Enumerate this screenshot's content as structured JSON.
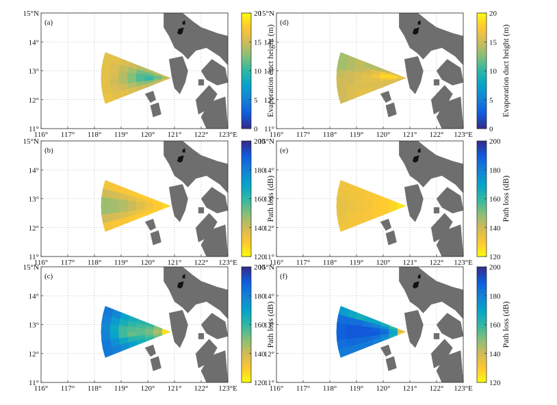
{
  "figure": {
    "axes": {
      "x_ticks": [
        "116°",
        "117°",
        "118°",
        "119°",
        "120°",
        "121°",
        "122°",
        "123°E"
      ],
      "y_ticks": [
        "11°",
        "12°",
        "13°",
        "14°",
        "15°N"
      ]
    }
  },
  "chart_data": [
    {
      "type": "heatmap",
      "panel": "(a)",
      "title": "",
      "xlabel": "",
      "ylabel": "",
      "xlim": [
        116,
        123
      ],
      "ylim": [
        11,
        15
      ],
      "colorbar": {
        "label": "Evaporation duct height (m)",
        "min": 0,
        "max": 20,
        "ticks": [
          "0",
          "5",
          "10",
          "15",
          "20"
        ],
        "colormap": "parula"
      },
      "sector": {
        "apex_lon": 120.85,
        "apex_lat": 12.75,
        "range_deg": 2.6,
        "bearing_min": 250,
        "bearing_max": 290
      },
      "values": [
        [
          15.5,
          14.5,
          14.0,
          14.0,
          15.0,
          15.5,
          16.0,
          16.0
        ],
        [
          14.5,
          13.0,
          12.0,
          12.0,
          13.5,
          14.5,
          15.5,
          16.0
        ],
        [
          13.5,
          11.5,
          10.5,
          11.0,
          12.5,
          14.0,
          15.5,
          16.0
        ],
        [
          14.0,
          12.0,
          10.0,
          11.0,
          12.5,
          14.0,
          15.0,
          16.0
        ],
        [
          15.0,
          13.5,
          12.5,
          13.0,
          14.0,
          15.0,
          15.5,
          16.0
        ],
        [
          15.5,
          15.0,
          14.5,
          15.0,
          15.5,
          16.0,
          16.0,
          16.5
        ]
      ]
    },
    {
      "type": "heatmap",
      "panel": "(b)",
      "xlim": [
        116,
        123
      ],
      "ylim": [
        11,
        15
      ],
      "colorbar": {
        "label": "Path loss (dB)",
        "min": 120,
        "max": 200,
        "ticks": [
          "120",
          "140",
          "160",
          "180",
          "200"
        ],
        "colormap": "parula_reversed"
      },
      "sector": {
        "apex_lon": 120.85,
        "apex_lat": 12.75,
        "range_deg": 2.6,
        "bearing_min": 250,
        "bearing_max": 290
      },
      "values": [
        [
          128,
          129,
          129,
          129,
          130,
          131,
          131,
          132
        ],
        [
          127,
          129,
          131,
          133,
          136,
          138,
          139,
          140
        ],
        [
          127,
          130,
          133,
          137,
          141,
          144,
          146,
          147
        ],
        [
          127,
          130,
          133,
          137,
          141,
          144,
          146,
          147
        ],
        [
          127,
          129,
          131,
          133,
          136,
          138,
          139,
          140
        ],
        [
          128,
          129,
          129,
          129,
          130,
          131,
          131,
          132
        ]
      ]
    },
    {
      "type": "heatmap",
      "panel": "(c)",
      "xlim": [
        116,
        123
      ],
      "ylim": [
        11,
        15
      ],
      "colorbar": {
        "label": "Path loss (dB)",
        "min": 120,
        "max": 200,
        "ticks": [
          "120",
          "140",
          "160",
          "180",
          "200"
        ],
        "colormap": "parula_reversed"
      },
      "sector": {
        "apex_lon": 120.85,
        "apex_lat": 12.75,
        "range_deg": 2.6,
        "bearing_min": 250,
        "bearing_max": 290
      },
      "values": [
        [
          125,
          150,
          160,
          162,
          165,
          170,
          178,
          182
        ],
        [
          125,
          148,
          155,
          158,
          160,
          165,
          172,
          180
        ],
        [
          125,
          145,
          152,
          155,
          156,
          158,
          168,
          178
        ],
        [
          125,
          145,
          152,
          155,
          153,
          158,
          170,
          180
        ],
        [
          125,
          148,
          155,
          160,
          162,
          168,
          176,
          182
        ],
        [
          125,
          152,
          160,
          165,
          170,
          176,
          180,
          182
        ]
      ]
    },
    {
      "type": "heatmap",
      "panel": "(d)",
      "xlim": [
        116,
        123
      ],
      "ylim": [
        11,
        15
      ],
      "colorbar": {
        "label": "Evaporation duct height (m)",
        "min": 0,
        "max": 20,
        "ticks": [
          "0",
          "5",
          "10",
          "15",
          "20"
        ],
        "colormap": "parula"
      },
      "sector": {
        "apex_lon": 120.85,
        "apex_lat": 12.75,
        "range_deg": 2.6,
        "bearing_min": 250,
        "bearing_max": 290
      },
      "values": [
        [
          16.0,
          15.0,
          14.5,
          14.0,
          14.0,
          14.5,
          14.0,
          13.5
        ],
        [
          17.0,
          18.0,
          17.5,
          16.0,
          15.0,
          14.5,
          14.0,
          13.5
        ],
        [
          17.0,
          18.5,
          18.5,
          17.0,
          16.0,
          15.5,
          15.0,
          14.5
        ],
        [
          16.5,
          17.5,
          17.0,
          16.0,
          16.0,
          15.5,
          15.0,
          15.0
        ],
        [
          15.5,
          15.5,
          15.5,
          15.5,
          15.5,
          15.5,
          15.5,
          15.0
        ],
        [
          15.5,
          15.5,
          15.5,
          15.5,
          16.0,
          16.0,
          15.5,
          15.0
        ]
      ]
    },
    {
      "type": "heatmap",
      "panel": "(e)",
      "xlim": [
        116,
        123
      ],
      "ylim": [
        11,
        15
      ],
      "colorbar": {
        "label": "Path loss (dB)",
        "min": 120,
        "max": 200,
        "ticks": [
          "120",
          "140",
          "160",
          "180",
          "200"
        ],
        "colormap": "parula_reversed"
      },
      "sector": {
        "apex_lon": 120.85,
        "apex_lat": 12.75,
        "range_deg": 2.6,
        "bearing_min": 250,
        "bearing_max": 290
      },
      "values": [
        [
          124,
          127,
          129,
          130,
          131,
          132,
          132,
          133
        ],
        [
          124,
          127,
          129,
          130,
          131,
          132,
          133,
          134
        ],
        [
          124,
          127,
          129,
          130,
          132,
          133,
          134,
          135
        ],
        [
          124,
          127,
          129,
          130,
          132,
          133,
          134,
          135
        ],
        [
          124,
          127,
          129,
          130,
          131,
          132,
          133,
          134
        ],
        [
          124,
          127,
          129,
          130,
          131,
          132,
          132,
          133
        ]
      ]
    },
    {
      "type": "heatmap",
      "panel": "(f)",
      "xlim": [
        116,
        123
      ],
      "ylim": [
        11,
        15
      ],
      "colorbar": {
        "label": "Path loss (dB)",
        "min": 120,
        "max": 200,
        "ticks": [
          "120",
          "140",
          "160",
          "180",
          "200"
        ],
        "colormap": "parula_reversed"
      },
      "sector": {
        "apex_lon": 120.85,
        "apex_lat": 12.75,
        "range_deg": 2.6,
        "bearing_min": 250,
        "bearing_max": 290
      },
      "values": [
        [
          130,
          158,
          165,
          168,
          168,
          165,
          168,
          172
        ],
        [
          135,
          165,
          175,
          180,
          182,
          185,
          185,
          185
        ],
        [
          140,
          168,
          185,
          188,
          190,
          190,
          190,
          188
        ],
        [
          140,
          170,
          186,
          190,
          190,
          190,
          190,
          188
        ],
        [
          135,
          168,
          180,
          184,
          186,
          186,
          186,
          185
        ],
        [
          130,
          165,
          175,
          180,
          182,
          182,
          182,
          182
        ]
      ]
    }
  ]
}
